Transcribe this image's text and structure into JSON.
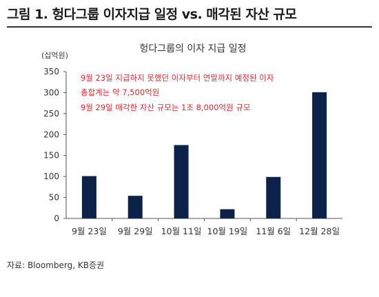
{
  "figure": {
    "title": "그림 1. 헝다그룹 이자지급 일정 vs. 매각된 자산 규모",
    "source": "자료: Bloomberg, KB증권"
  },
  "chart_data": {
    "type": "bar",
    "title": "헝다그룹의 이자 지급 일정",
    "unit_label": "(십억원)",
    "categories": [
      "9월 23일",
      "9월 29일",
      "10월 11일",
      "10월 19일",
      "11월 6일",
      "12월 28일"
    ],
    "values": [
      101,
      54,
      175,
      22,
      99,
      301
    ],
    "ylim": [
      0,
      350
    ],
    "yticks": [
      0,
      50,
      100,
      150,
      200,
      250,
      300,
      350
    ],
    "grid": false,
    "bar_color": "#0d2248",
    "annotations": [
      "9월 23일 지급하지 못했던 이자부터 연말까지 예정된 이자",
      "총합계는 약 7,500억원",
      "9월 29일 매각한 자산 규모는 1조 8,000억원 규모"
    ],
    "annotation_color": "#e8262f"
  }
}
